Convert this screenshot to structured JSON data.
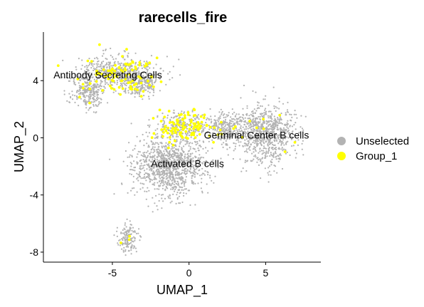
{
  "chart_data": {
    "type": "scatter",
    "title": "rarecells_fire",
    "xlabel": "UMAP_1",
    "ylabel": "UMAP_2",
    "xlim": [
      -9.5,
      8.6
    ],
    "ylim": [
      -8.7,
      7.4
    ],
    "x_ticks": [
      -5,
      0,
      5
    ],
    "y_ticks": [
      -8,
      -4,
      0,
      4
    ],
    "grid": false,
    "legend_position": "right",
    "series": [
      {
        "name": "Unselected",
        "color": "#B3B3B3"
      },
      {
        "name": "Group_1",
        "color": "#FFFF00"
      }
    ],
    "cluster_labels": [
      {
        "text": "Antibody Secreting Cells",
        "x": -5.3,
        "y": 4.4
      },
      {
        "text": "Germinal Center B cells",
        "x": 4.4,
        "y": 0.2
      },
      {
        "text": "Activated B cells",
        "x": -0.1,
        "y": -1.8
      }
    ],
    "regions": [
      {
        "label": "Antibody Secreting Cells",
        "cx": -4.6,
        "cy": 4.6,
        "sx": 2.3,
        "sy": 1.0,
        "group1_fraction": 0.12
      },
      {
        "label": "Antibody Secreting Cells",
        "cx": -6.6,
        "cy": 3.2,
        "sx": 1.0,
        "sy": 1.0,
        "group1_fraction": 0.04
      },
      {
        "label": "Antibody Secreting Cells",
        "cx": -3.2,
        "cy": 3.8,
        "sx": 1.0,
        "sy": 0.8,
        "group1_fraction": 0.1
      },
      {
        "label": "Activated B cells",
        "cx": -1.3,
        "cy": -2.0,
        "sx": 2.2,
        "sy": 1.9,
        "group1_fraction": 0.0
      },
      {
        "label": "Activated B cells",
        "cx": -0.4,
        "cy": 0.8,
        "sx": 1.4,
        "sy": 0.9,
        "group1_fraction": 0.25
      },
      {
        "label": "Germinal Center B cells",
        "cx": 5.0,
        "cy": 0.3,
        "sx": 1.7,
        "sy": 1.8,
        "group1_fraction": 0.01
      },
      {
        "label": "Germinal Center B cells",
        "cx": 2.4,
        "cy": 0.7,
        "sx": 1.2,
        "sy": 1.0,
        "group1_fraction": 0.02
      },
      {
        "label": "",
        "cx": -4.0,
        "cy": -7.0,
        "sx": 0.6,
        "sy": 1.0,
        "group1_fraction": 0.03
      }
    ]
  }
}
